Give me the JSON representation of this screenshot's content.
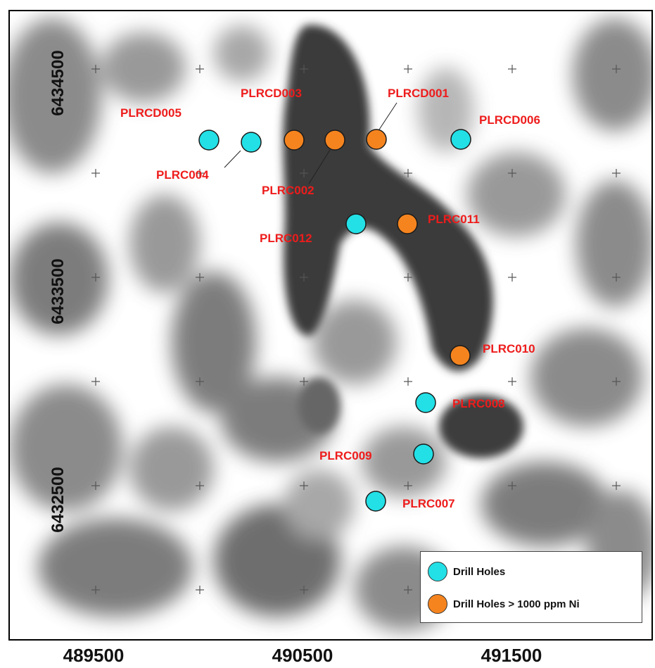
{
  "map": {
    "x_axis": {
      "ticks": [
        "489500",
        "490500",
        "491500"
      ]
    },
    "y_axis": {
      "ticks": [
        "6434500",
        "6433500",
        "6432500"
      ]
    }
  },
  "legend": {
    "items": [
      {
        "label": "Drill Holes",
        "color": "#22e0e6"
      },
      {
        "label": "Drill Holes > 1000 ppm Ni",
        "color": "#f5841f"
      }
    ]
  },
  "drill_holes": [
    {
      "id": "PLRCD005",
      "type": "drill"
    },
    {
      "id": "PLRC004",
      "type": "drill"
    },
    {
      "id": "PLRCD003",
      "type": "high-ni"
    },
    {
      "id": "PLRC002",
      "type": "high-ni"
    },
    {
      "id": "PLRCD001",
      "type": "high-ni"
    },
    {
      "id": "PLRCD006",
      "type": "drill"
    },
    {
      "id": "PLRC012",
      "type": "drill"
    },
    {
      "id": "PLRC011",
      "type": "high-ni"
    },
    {
      "id": "PLRC010",
      "type": "high-ni"
    },
    {
      "id": "PLRC008",
      "type": "drill"
    },
    {
      "id": "PLRC009",
      "type": "drill"
    },
    {
      "id": "PLRC007",
      "type": "drill"
    }
  ],
  "colors": {
    "drill": "#22e0e6",
    "high-ni": "#f5841f",
    "label": "#ee1c1c"
  }
}
